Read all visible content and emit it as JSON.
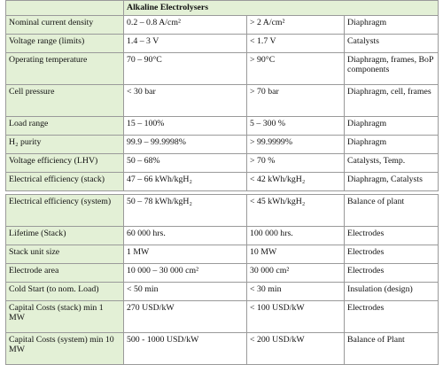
{
  "table": {
    "header": "Alkaline Electrolysers",
    "rows_top": [
      {
        "label": "Nominal current density",
        "today": "0.2 – 0.8 A/cm²",
        "future": "> 2 A/cm²",
        "parameter": "Diaphragm"
      },
      {
        "label": "Voltage range (limits)",
        "today": "1.4 – 3 V",
        "future": "< 1.7 V",
        "parameter": "Catalysts"
      },
      {
        "label": "Operating temperature",
        "today": "70 – 90°C",
        "future": "> 90°C",
        "parameter": "Diaphragm, frames, BoP components"
      },
      {
        "label": "Cell pressure",
        "today": "< 30 bar",
        "future": "> 70 bar",
        "parameter": "Diaphragm, cell, frames"
      },
      {
        "label": "Load range",
        "today": "15 – 100%",
        "future": "5 – 300 %",
        "parameter": "Diaphragm"
      },
      {
        "label": "H₂ purity",
        "today": "99.9 – 99.9998%",
        "future": "> 99.9999%",
        "parameter": "Diaphragm"
      },
      {
        "label": "Voltage efficiency (LHV)",
        "today": "50 – 68%",
        "future": "> 70 %",
        "parameter": "Catalysts, Temp."
      },
      {
        "label": "Electrical efficiency (stack)",
        "today": "47 – 66 kWh/kgH₂",
        "future": "< 42 kWh/kgH₂",
        "parameter": "Diaphragm, Catalysts"
      }
    ],
    "rows_bottom": [
      {
        "label": "Electrical efficiency (system)",
        "today": "50 – 78 kWh/kgH₂",
        "future": "< 45 kWh/kgH₂",
        "parameter": "Balance of plant"
      },
      {
        "label": "Lifetime (Stack)",
        "today": "60 000 hrs.",
        "future": "100 000 hrs.",
        "parameter": "Electrodes"
      },
      {
        "label": "Stack unit size",
        "today": "1 MW",
        "future": "10 MW",
        "parameter": "Electrodes"
      },
      {
        "label": "Electrode area",
        "today": "10 000 – 30 000 cm²",
        "future": "30 000 cm²",
        "parameter": "Electrodes"
      },
      {
        "label": "Cold Start (to nom. Load)",
        "today": "< 50 min",
        "future": "< 30 min",
        "parameter": "Insulation (design)"
      },
      {
        "label": "Capital Costs (stack) min 1 MW",
        "today": "270 USD/kW",
        "future": "< 100 USD/kW",
        "parameter": "Electrodes"
      },
      {
        "label": "Capital Costs (system) min 10 MW",
        "today": "500 - 1000 USD/kW",
        "future": "< 200 USD/kW",
        "parameter": "Balance of Plant"
      }
    ]
  }
}
